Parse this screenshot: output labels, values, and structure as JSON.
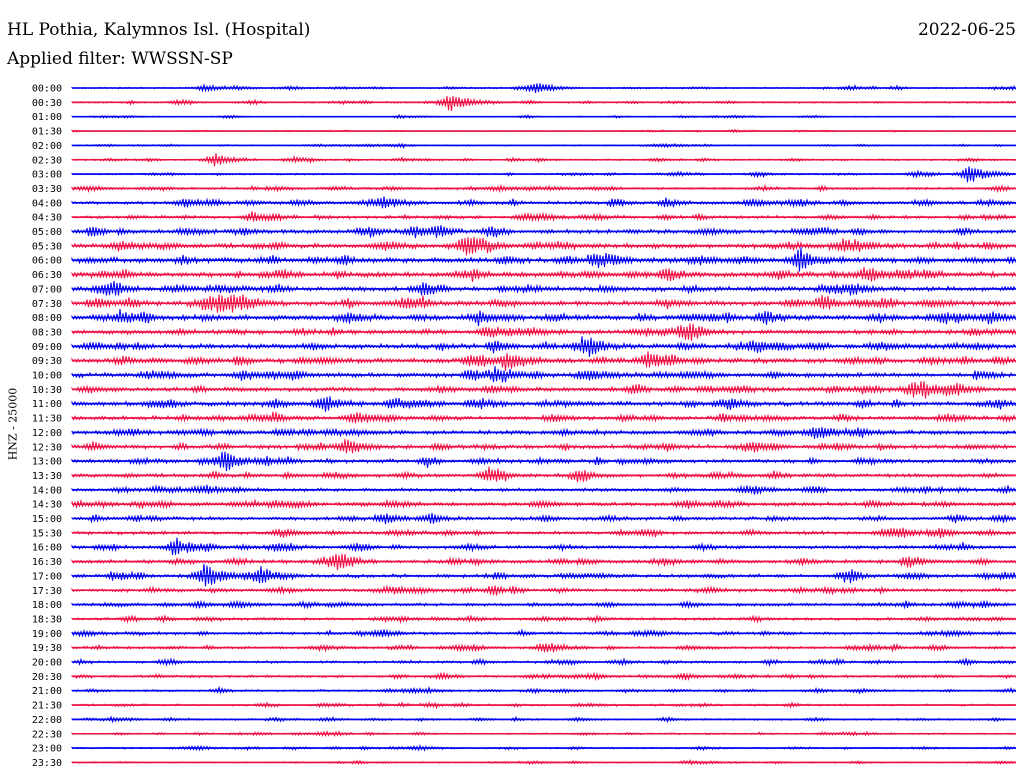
{
  "header": {
    "station": "HL Pothia, Kalymnos Isl. (Hospital)",
    "date": "2022-06-25",
    "filter": "Applied filter: WWSSN-SP"
  },
  "colors": {
    "blue": "#0000ee",
    "red": "#ee1144"
  },
  "chart_data": {
    "type": "line",
    "title": "HL Pothia, Kalymnos Isl. (Hospital)",
    "ylabel": "HNZ - 25000",
    "ytick_labels": [
      "00:00",
      "00:30",
      "01:00",
      "01:30",
      "02:00",
      "02:30",
      "03:00",
      "03:30",
      "04:00",
      "04:30",
      "05:00",
      "05:30",
      "06:00",
      "06:30",
      "07:00",
      "07:30",
      "08:00",
      "08:30",
      "09:00",
      "09:30",
      "10:00",
      "10:30",
      "11:00",
      "11:30",
      "12:00",
      "12:30",
      "13:00",
      "13:30",
      "14:00",
      "14:30",
      "15:00",
      "15:30",
      "16:00",
      "16:30",
      "17:00",
      "17:30",
      "18:00",
      "18:30",
      "19:00",
      "19:30",
      "20:00",
      "20:30",
      "21:00",
      "21:30",
      "22:00",
      "22:30",
      "23:00",
      "23:30"
    ],
    "noise_level": [
      0.9,
      0.9,
      0.6,
      0.5,
      0.7,
      1.0,
      0.9,
      1.3,
      1.8,
      1.6,
      2.2,
      2.6,
      2.8,
      2.8,
      2.5,
      2.8,
      2.8,
      2.4,
      2.6,
      2.6,
      2.5,
      2.3,
      2.4,
      2.2,
      2.2,
      2.2,
      2.0,
      2.0,
      1.8,
      2.0,
      1.8,
      1.8,
      1.8,
      2.0,
      1.9,
      1.8,
      1.6,
      1.5,
      1.5,
      1.4,
      1.3,
      1.3,
      1.1,
      1.1,
      1.0,
      0.9,
      0.9,
      0.8
    ],
    "events": [
      {
        "row": 0,
        "t": 0.49,
        "amp": 7
      },
      {
        "row": 0,
        "t": 0.14,
        "amp": 3
      },
      {
        "row": 1,
        "t": 0.4,
        "amp": 9
      },
      {
        "row": 5,
        "t": 0.15,
        "amp": 7
      },
      {
        "row": 6,
        "t": 0.95,
        "amp": 10
      },
      {
        "row": 8,
        "t": 0.33,
        "amp": 5
      },
      {
        "row": 8,
        "t": 0.12,
        "amp": 4
      },
      {
        "row": 9,
        "t": 0.19,
        "amp": 5
      },
      {
        "row": 10,
        "t": 0.36,
        "amp": 6
      },
      {
        "row": 11,
        "t": 0.05,
        "amp": 5
      },
      {
        "row": 11,
        "t": 0.41,
        "amp": 5
      },
      {
        "row": 12,
        "t": 0.77,
        "amp": 9
      },
      {
        "row": 13,
        "t": 0.84,
        "amp": 6
      },
      {
        "row": 15,
        "t": 0.18,
        "amp": 6
      },
      {
        "row": 16,
        "t": 0.05,
        "amp": 7
      },
      {
        "row": 16,
        "t": 0.43,
        "amp": 5
      },
      {
        "row": 16,
        "t": 0.97,
        "amp": 6
      },
      {
        "row": 17,
        "t": 0.44,
        "amp": 4
      },
      {
        "row": 18,
        "t": 0.54,
        "amp": 8
      },
      {
        "row": 19,
        "t": 0.46,
        "amp": 10
      },
      {
        "row": 19,
        "t": 0.61,
        "amp": 9
      },
      {
        "row": 20,
        "t": 0.45,
        "amp": 9
      },
      {
        "row": 20,
        "t": 0.18,
        "amp": 5
      },
      {
        "row": 21,
        "t": 0.89,
        "amp": 9
      },
      {
        "row": 22,
        "t": 0.27,
        "amp": 5
      },
      {
        "row": 23,
        "t": 0.3,
        "amp": 7
      },
      {
        "row": 24,
        "t": 0.79,
        "amp": 7
      },
      {
        "row": 25,
        "t": 0.29,
        "amp": 7
      },
      {
        "row": 26,
        "t": 0.16,
        "amp": 9
      },
      {
        "row": 32,
        "t": 0.11,
        "amp": 8
      },
      {
        "row": 34,
        "t": 0.14,
        "amp": 13
      },
      {
        "row": 34,
        "t": 0.2,
        "amp": 9
      },
      {
        "row": 39,
        "t": 0.5,
        "amp": 7
      }
    ]
  }
}
